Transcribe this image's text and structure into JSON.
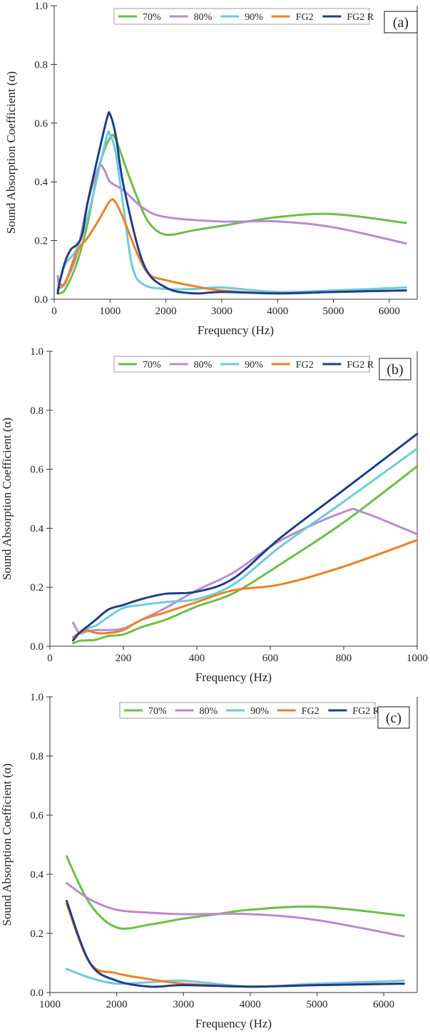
{
  "legend": [
    "70%",
    "80%",
    "90%",
    "FG2",
    "FG2 R"
  ],
  "colors": {
    "70%": "#6bbf45",
    "80%": "#b88ccc",
    "90%": "#6fcadb",
    "FG2": "#f07f24",
    "FG2 R": "#1f3e8a"
  },
  "chart_data": [
    {
      "type": "line",
      "panel_label": "(a)",
      "xlabel": "Frequency (Hz)",
      "ylabel": "Sound Absorption Coefficient (α)",
      "xlim": [
        0,
        6500
      ],
      "ylim": [
        0,
        1.0
      ],
      "xticks": [
        0,
        1000,
        2000,
        3000,
        4000,
        5000,
        6000
      ],
      "yticks": [
        0.0,
        0.2,
        0.4,
        0.6,
        0.8,
        1.0
      ],
      "legend_position": "top",
      "series": [
        {
          "name": "70%",
          "points": [
            [
              63,
              0.02
            ],
            [
              100,
              0.02
            ],
            [
              200,
              0.035
            ],
            [
              400,
              0.12
            ],
            [
              600,
              0.26
            ],
            [
              800,
              0.45
            ],
            [
              1000,
              0.55
            ],
            [
              1100,
              0.545
            ],
            [
              1300,
              0.44
            ],
            [
              1500,
              0.34
            ],
            [
              1700,
              0.26
            ],
            [
              2000,
              0.22
            ],
            [
              2500,
              0.235
            ],
            [
              3000,
              0.25
            ],
            [
              4000,
              0.28
            ],
            [
              5000,
              0.29
            ],
            [
              6300,
              0.26
            ]
          ]
        },
        {
          "name": "80%",
          "points": [
            [
              63,
              0.08
            ],
            [
              100,
              0.04
            ],
            [
              200,
              0.06
            ],
            [
              400,
              0.15
            ],
            [
              600,
              0.33
            ],
            [
              800,
              0.45
            ],
            [
              900,
              0.44
            ],
            [
              1000,
              0.4
            ],
            [
              1250,
              0.37
            ],
            [
              1600,
              0.31
            ],
            [
              2000,
              0.28
            ],
            [
              3000,
              0.265
            ],
            [
              4000,
              0.265
            ],
            [
              5000,
              0.245
            ],
            [
              6300,
              0.19
            ]
          ]
        },
        {
          "name": "90%",
          "points": [
            [
              63,
              0.03
            ],
            [
              100,
              0.06
            ],
            [
              200,
              0.12
            ],
            [
              400,
              0.17
            ],
            [
              600,
              0.28
            ],
            [
              800,
              0.44
            ],
            [
              950,
              0.56
            ],
            [
              1000,
              0.56
            ],
            [
              1100,
              0.5
            ],
            [
              1250,
              0.3
            ],
            [
              1400,
              0.11
            ],
            [
              1600,
              0.05
            ],
            [
              2000,
              0.035
            ],
            [
              2500,
              0.035
            ],
            [
              3000,
              0.04
            ],
            [
              4000,
              0.025
            ],
            [
              5000,
              0.03
            ],
            [
              6300,
              0.04
            ]
          ]
        },
        {
          "name": "FG2",
          "points": [
            [
              63,
              0.03
            ],
            [
              100,
              0.05
            ],
            [
              200,
              0.055
            ],
            [
              400,
              0.16
            ],
            [
              600,
              0.21
            ],
            [
              800,
              0.27
            ],
            [
              1000,
              0.335
            ],
            [
              1100,
              0.33
            ],
            [
              1250,
              0.27
            ],
            [
              1500,
              0.15
            ],
            [
              1700,
              0.085
            ],
            [
              2000,
              0.065
            ],
            [
              2500,
              0.045
            ],
            [
              3000,
              0.03
            ],
            [
              4000,
              0.02
            ],
            [
              5000,
              0.025
            ],
            [
              6300,
              0.03
            ]
          ]
        },
        {
          "name": "FG2 R",
          "points": [
            [
              63,
              0.02
            ],
            [
              100,
              0.06
            ],
            [
              200,
              0.13
            ],
            [
              300,
              0.17
            ],
            [
              400,
              0.185
            ],
            [
              500,
              0.22
            ],
            [
              600,
              0.33
            ],
            [
              800,
              0.5
            ],
            [
              950,
              0.62
            ],
            [
              1000,
              0.63
            ],
            [
              1100,
              0.56
            ],
            [
              1250,
              0.38
            ],
            [
              1600,
              0.12
            ],
            [
              2000,
              0.04
            ],
            [
              2500,
              0.02
            ],
            [
              3000,
              0.025
            ],
            [
              4000,
              0.02
            ],
            [
              5000,
              0.025
            ],
            [
              6300,
              0.03
            ]
          ]
        }
      ]
    },
    {
      "type": "line",
      "panel_label": "(b)",
      "xlabel": "Frequency (Hz)",
      "ylabel": "Sound Absorption Coefficient (α)",
      "xlim": [
        0,
        1000
      ],
      "ylim": [
        0,
        1.0
      ],
      "xticks": [
        0,
        200,
        400,
        600,
        800,
        1000
      ],
      "yticks": [
        0.0,
        0.2,
        0.4,
        0.6,
        0.8,
        1.0
      ],
      "legend_position": "top",
      "series": [
        {
          "name": "70%",
          "points": [
            [
              63,
              0.01
            ],
            [
              80,
              0.018
            ],
            [
              100,
              0.02
            ],
            [
              125,
              0.022
            ],
            [
              160,
              0.035
            ],
            [
              200,
              0.04
            ],
            [
              250,
              0.065
            ],
            [
              315,
              0.09
            ],
            [
              400,
              0.135
            ],
            [
              500,
              0.18
            ],
            [
              630,
              0.28
            ],
            [
              800,
              0.42
            ],
            [
              1000,
              0.61
            ]
          ]
        },
        {
          "name": "80%",
          "points": [
            [
              63,
              0.08
            ],
            [
              80,
              0.045
            ],
            [
              100,
              0.05
            ],
            [
              125,
              0.055
            ],
            [
              160,
              0.055
            ],
            [
              200,
              0.06
            ],
            [
              250,
              0.09
            ],
            [
              315,
              0.13
            ],
            [
              400,
              0.19
            ],
            [
              500,
              0.25
            ],
            [
              630,
              0.36
            ],
            [
              800,
              0.455
            ],
            [
              850,
              0.455
            ],
            [
              1000,
              0.38
            ]
          ]
        },
        {
          "name": "90%",
          "points": [
            [
              63,
              0.03
            ],
            [
              80,
              0.045
            ],
            [
              100,
              0.06
            ],
            [
              125,
              0.07
            ],
            [
              160,
              0.1
            ],
            [
              200,
              0.13
            ],
            [
              250,
              0.14
            ],
            [
              315,
              0.15
            ],
            [
              400,
              0.16
            ],
            [
              500,
              0.21
            ],
            [
              630,
              0.34
            ],
            [
              800,
              0.49
            ],
            [
              1000,
              0.67
            ]
          ]
        },
        {
          "name": "FG2",
          "points": [
            [
              63,
              0.03
            ],
            [
              80,
              0.045
            ],
            [
              100,
              0.055
            ],
            [
              125,
              0.045
            ],
            [
              160,
              0.045
            ],
            [
              200,
              0.055
            ],
            [
              250,
              0.09
            ],
            [
              315,
              0.115
            ],
            [
              400,
              0.15
            ],
            [
              500,
              0.19
            ],
            [
              630,
              0.21
            ],
            [
              800,
              0.27
            ],
            [
              1000,
              0.36
            ]
          ]
        },
        {
          "name": "FG2 R",
          "points": [
            [
              63,
              0.02
            ],
            [
              80,
              0.045
            ],
            [
              100,
              0.065
            ],
            [
              125,
              0.09
            ],
            [
              160,
              0.125
            ],
            [
              200,
              0.14
            ],
            [
              250,
              0.16
            ],
            [
              315,
              0.178
            ],
            [
              400,
              0.185
            ],
            [
              500,
              0.23
            ],
            [
              630,
              0.37
            ],
            [
              800,
              0.53
            ],
            [
              1000,
              0.72
            ]
          ]
        }
      ]
    },
    {
      "type": "line",
      "panel_label": "(c)",
      "xlabel": "Frequency (Hz)",
      "ylabel": "Sound Absorption Coefficient (α)",
      "xlim": [
        1000,
        6500
      ],
      "ylim": [
        0,
        1.0
      ],
      "xticks": [
        1000,
        2000,
        3000,
        4000,
        5000,
        6000
      ],
      "yticks": [
        0.0,
        0.2,
        0.4,
        0.6,
        0.8,
        1.0
      ],
      "legend_position": "top",
      "series": [
        {
          "name": "70%",
          "points": [
            [
              1250,
              0.46
            ],
            [
              1600,
              0.3
            ],
            [
              2000,
              0.22
            ],
            [
              2500,
              0.23
            ],
            [
              3000,
              0.25
            ],
            [
              3500,
              0.265
            ],
            [
              4000,
              0.28
            ],
            [
              5000,
              0.29
            ],
            [
              6300,
              0.26
            ]
          ]
        },
        {
          "name": "80%",
          "points": [
            [
              1250,
              0.37
            ],
            [
              1600,
              0.315
            ],
            [
              2000,
              0.28
            ],
            [
              2500,
              0.27
            ],
            [
              3000,
              0.265
            ],
            [
              4000,
              0.265
            ],
            [
              5000,
              0.245
            ],
            [
              6300,
              0.19
            ]
          ]
        },
        {
          "name": "90%",
          "points": [
            [
              1250,
              0.08
            ],
            [
              1600,
              0.05
            ],
            [
              2000,
              0.03
            ],
            [
              2500,
              0.035
            ],
            [
              3000,
              0.04
            ],
            [
              4000,
              0.02
            ],
            [
              5000,
              0.03
            ],
            [
              6300,
              0.04
            ]
          ]
        },
        {
          "name": "FG2",
          "points": [
            [
              1250,
              0.3
            ],
            [
              1600,
              0.1
            ],
            [
              2000,
              0.065
            ],
            [
              2500,
              0.045
            ],
            [
              3000,
              0.03
            ],
            [
              4000,
              0.02
            ],
            [
              5000,
              0.025
            ],
            [
              6300,
              0.03
            ]
          ]
        },
        {
          "name": "FG2 R",
          "points": [
            [
              1250,
              0.31
            ],
            [
              1600,
              0.1
            ],
            [
              2000,
              0.04
            ],
            [
              2500,
              0.02
            ],
            [
              3000,
              0.025
            ],
            [
              4000,
              0.02
            ],
            [
              5000,
              0.025
            ],
            [
              6300,
              0.03
            ]
          ]
        }
      ]
    }
  ]
}
